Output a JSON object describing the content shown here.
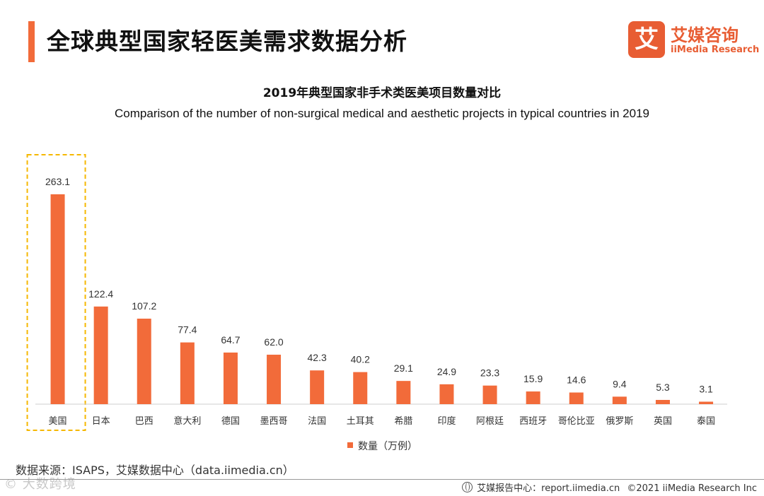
{
  "header": {
    "title": "全球典型国家轻医美需求数据分析",
    "logo_glyph": "艾",
    "logo_cn": "艾媒咨询",
    "logo_en": "iiMedia Research",
    "accent_color": "#f26b3a"
  },
  "chart_data": {
    "type": "bar",
    "title": "2019年典型国家非手术类医美项目数量对比",
    "subtitle": "Comparison of the number of non-surgical medical and aesthetic projects in typical countries in 2019",
    "categories": [
      "美国",
      "日本",
      "巴西",
      "意大利",
      "德国",
      "墨西哥",
      "法国",
      "土耳其",
      "希腊",
      "印度",
      "阿根廷",
      "西班牙",
      "哥伦比亚",
      "俄罗斯",
      "英国",
      "泰国"
    ],
    "series": [
      {
        "name": "数量（万例）",
        "color": "#f26b3a",
        "values": [
          263.1,
          122.4,
          107.2,
          77.4,
          64.7,
          62.0,
          42.3,
          40.2,
          29.1,
          24.9,
          23.3,
          15.9,
          14.6,
          9.4,
          5.3,
          3.1
        ]
      }
    ],
    "value_labels": [
      "263.1",
      "122.4",
      "107.2",
      "77.4",
      "64.7",
      "62.0",
      "42.3",
      "40.2",
      "29.1",
      "24.9",
      "23.3",
      "15.9",
      "14.6",
      "9.4",
      "5.3",
      "3.1"
    ],
    "ylim": [
      0,
      263.1
    ],
    "highlight_category": "美国",
    "highlight_color": "#f5b800",
    "legend_position": "bottom",
    "grid": false
  },
  "source": "数据来源：ISAPS，艾媒数据中心（data.iimedia.cn）",
  "watermark": "© 大数跨境",
  "footer": {
    "brand": "艾媒报告中心：report.iimedia.cn",
    "copyright": "©2021  iiMedia Research  Inc"
  }
}
